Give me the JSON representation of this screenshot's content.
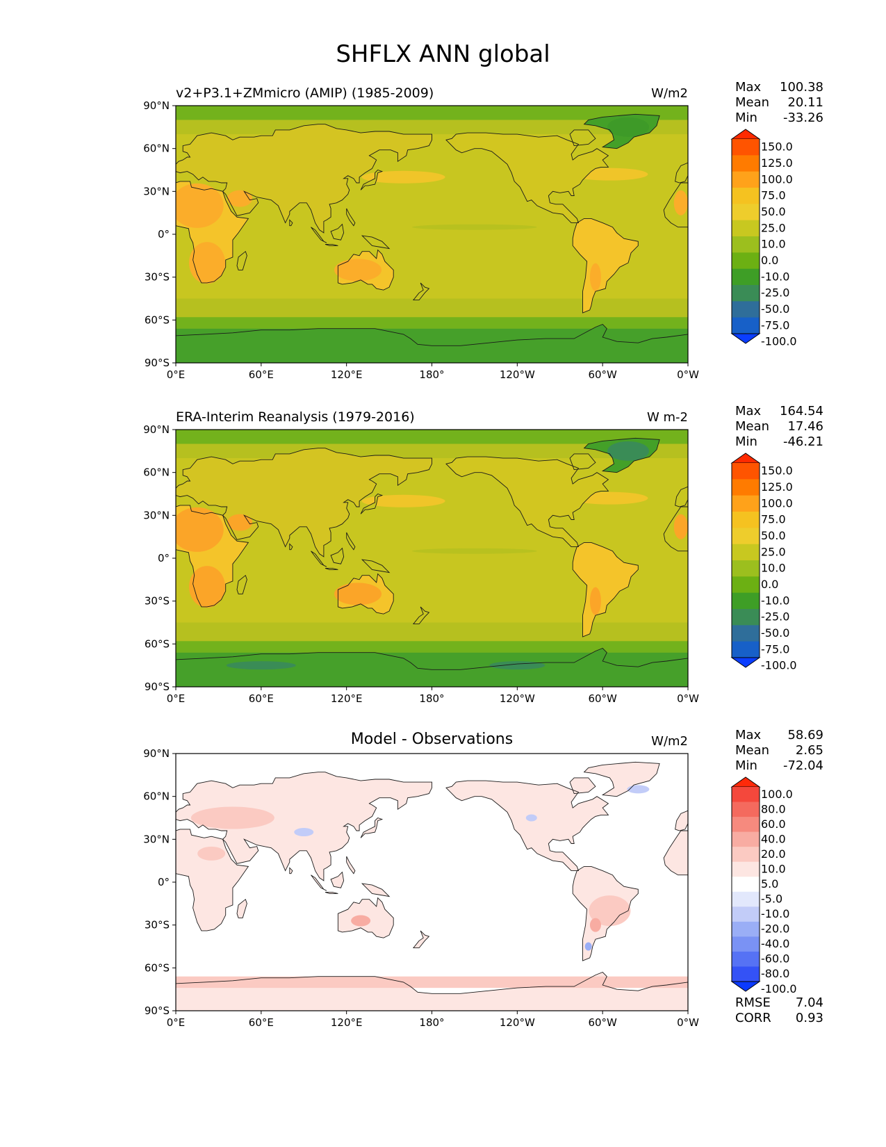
{
  "figure": {
    "title": "SHFLX ANN global"
  },
  "chart_data": [
    {
      "type": "heatmap",
      "title": "v2+P3.1+ZMmicro (AMIP) (1985-2009)",
      "units": "W/m2",
      "stats": [
        {
          "label": "Max",
          "value": "100.38"
        },
        {
          "label": "Mean",
          "value": "20.11"
        },
        {
          "label": "Min",
          "value": "-33.26"
        }
      ],
      "x_ticks": [
        "0°E",
        "60°E",
        "120°E",
        "180°",
        "120°W",
        "60°W",
        "0°W"
      ],
      "y_ticks": [
        "90°N",
        "60°N",
        "30°N",
        "0°",
        "30°S",
        "60°S",
        "90°S"
      ],
      "colorbar": {
        "levels": [
          "150.0",
          "125.0",
          "100.0",
          "75.0",
          "50.0",
          "25.0",
          "10.0",
          "0.0",
          "-10.0",
          "-25.0",
          "-50.0",
          "-75.0",
          "-100.0"
        ],
        "colors": [
          "#ff2a00",
          "#ff5400",
          "#ff7b00",
          "#ffa21a",
          "#f5c220",
          "#eecd2c",
          "#c8c820",
          "#9cbf1e",
          "#6cb013",
          "#3e9e26",
          "#3a8c56",
          "#2f6e9a",
          "#1760c8",
          "#0b3eff"
        ]
      }
    },
    {
      "type": "heatmap",
      "title": "ERA-Interim Reanalysis (1979-2016)",
      "units": "W m-2",
      "stats": [
        {
          "label": "Max",
          "value": "164.54"
        },
        {
          "label": "Mean",
          "value": "17.46"
        },
        {
          "label": "Min",
          "value": "-46.21"
        }
      ],
      "x_ticks": [
        "0°E",
        "60°E",
        "120°E",
        "180°",
        "120°W",
        "60°W",
        "0°W"
      ],
      "y_ticks": [
        "90°N",
        "60°N",
        "30°N",
        "0°",
        "30°S",
        "60°S",
        "90°S"
      ],
      "colorbar": {
        "levels": [
          "150.0",
          "125.0",
          "100.0",
          "75.0",
          "50.0",
          "25.0",
          "10.0",
          "0.0",
          "-10.0",
          "-25.0",
          "-50.0",
          "-75.0",
          "-100.0"
        ],
        "colors": [
          "#ff2a00",
          "#ff5400",
          "#ff7b00",
          "#ffa21a",
          "#f5c220",
          "#eecd2c",
          "#c8c820",
          "#9cbf1e",
          "#6cb013",
          "#3e9e26",
          "#3a8c56",
          "#2f6e9a",
          "#1760c8",
          "#0b3eff"
        ]
      }
    },
    {
      "type": "heatmap",
      "title": "Model - Observations",
      "units": "W/m2",
      "stats": [
        {
          "label": "Max",
          "value": "58.69"
        },
        {
          "label": "Mean",
          "value": "2.65"
        },
        {
          "label": "Min",
          "value": "-72.04"
        }
      ],
      "metrics": [
        {
          "label": "RMSE",
          "value": "7.04"
        },
        {
          "label": "CORR",
          "value": "0.93"
        }
      ],
      "x_ticks": [
        "0°E",
        "60°E",
        "120°E",
        "180°",
        "120°W",
        "60°W",
        "0°W"
      ],
      "y_ticks": [
        "90°N",
        "60°N",
        "30°N",
        "0°",
        "30°S",
        "60°S",
        "90°S"
      ],
      "colorbar": {
        "levels": [
          "100.0",
          "80.0",
          "60.0",
          "40.0",
          "20.0",
          "10.0",
          "5.0",
          "-5.0",
          "-10.0",
          "-20.0",
          "-40.0",
          "-60.0",
          "-80.0",
          "-100.0"
        ],
        "colors": [
          "#ff2a0a",
          "#f4483c",
          "#f46a5e",
          "#f68a7e",
          "#f8aca2",
          "#fbcac2",
          "#fde6e2",
          "#ffffff",
          "#e2e8fc",
          "#c2ccf8",
          "#9aaef6",
          "#7a92f4",
          "#5672f4",
          "#3452f6",
          "#0b3aff"
        ]
      }
    }
  ]
}
